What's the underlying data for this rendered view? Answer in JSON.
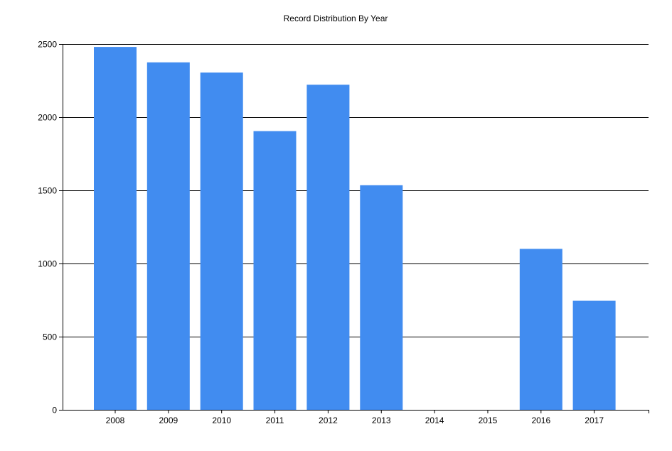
{
  "chart_data": {
    "type": "bar",
    "title": "Record Distribution By Year",
    "xlabel": "",
    "ylabel": "",
    "categories": [
      "2008",
      "2009",
      "2010",
      "2011",
      "2012",
      "2013",
      "2014",
      "2015",
      "2016",
      "2017"
    ],
    "values": [
      2480,
      2375,
      2305,
      1905,
      2222,
      1535,
      0,
      0,
      1100,
      745
    ],
    "ylim": [
      0,
      2500
    ],
    "yticks": [
      0,
      500,
      1000,
      1500,
      2000,
      2500
    ],
    "grid": "horizontal",
    "legend": "none",
    "bar_color": "#418CF0"
  }
}
